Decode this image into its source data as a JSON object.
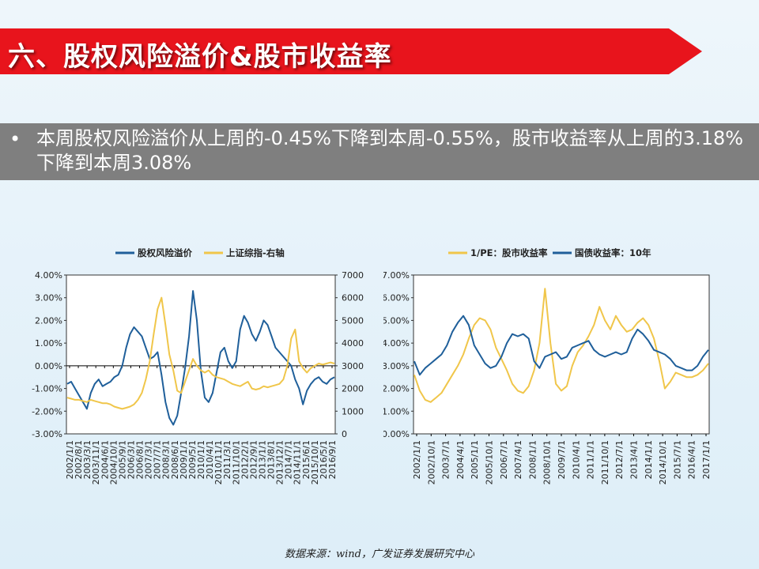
{
  "header": {
    "title": "六、股权风险溢价&股市收益率"
  },
  "bullet": {
    "text": "本周股权风险溢价从上周的-0.45%下降到本周-0.55%，股市收益率从上周的3.18%下降到本周3.08%"
  },
  "source": "数据来源：wind，广发证券发展研究中心",
  "colors": {
    "blue": "#1f5f9a",
    "gold": "#f0c64a",
    "banner": "#e8141c"
  },
  "chart_data": [
    {
      "type": "line",
      "legend": [
        "股权风险溢价",
        "上证综指-右轴"
      ],
      "x_ticks": [
        "2002/1/1",
        "2002/8/1",
        "2003/3/1",
        "2003/11/1",
        "2004/6/1",
        "2004/10/1",
        "2005/9/1",
        "2006/3/1",
        "2006/8/1",
        "2007/3/1",
        "2007/7/1",
        "2008/3/1",
        "2008/6/1",
        "2009/1/1",
        "2009/5/1",
        "2010/1/1",
        "2010/4/1",
        "2010/11/1",
        "2011/3/1",
        "2011/10/1",
        "2012/2/1",
        "2012/9/1",
        "2013/1/1",
        "2013/8/1",
        "2013/12/1",
        "2014/7/1",
        "2014/11/1",
        "2015/6/1",
        "2015/10/1",
        "2016/5/1",
        "2016/9/1"
      ],
      "y_left": {
        "min": -3,
        "max": 4,
        "ticks": [
          "-3.00%",
          "-2.00%",
          "-1.00%",
          "0.00%",
          "1.00%",
          "2.00%",
          "3.00%",
          "4.00%"
        ]
      },
      "y_right": {
        "min": 0,
        "max": 7000,
        "ticks": [
          "0",
          "1000",
          "2000",
          "3000",
          "4000",
          "5000",
          "6000",
          "7000"
        ]
      },
      "series": [
        {
          "name": "股权风险溢价",
          "axis": "left",
          "values": [
            -0.8,
            -0.7,
            -1.0,
            -1.3,
            -1.6,
            -1.9,
            -1.2,
            -0.8,
            -0.6,
            -0.9,
            -0.8,
            -0.7,
            -0.5,
            -0.4,
            0.0,
            0.8,
            1.4,
            1.7,
            1.5,
            1.3,
            0.8,
            0.3,
            0.4,
            0.6,
            -0.4,
            -1.6,
            -2.3,
            -2.6,
            -2.2,
            -1.2,
            -0.1,
            1.3,
            3.3,
            2.0,
            -0.2,
            -1.4,
            -1.6,
            -1.2,
            -0.3,
            0.6,
            0.8,
            0.2,
            -0.1,
            0.2,
            1.6,
            2.2,
            1.9,
            1.4,
            1.1,
            1.5,
            2.0,
            1.8,
            1.3,
            0.8,
            0.6,
            0.4,
            0.2,
            0.0,
            -0.6,
            -1.0,
            -1.7,
            -1.1,
            -0.8,
            -0.6,
            -0.5,
            -0.7,
            -0.8,
            -0.6,
            -0.5
          ]
        },
        {
          "name": "上证综指-右轴",
          "axis": "right",
          "values": [
            1600,
            1550,
            1500,
            1500,
            1450,
            1400,
            1500,
            1450,
            1400,
            1350,
            1350,
            1300,
            1200,
            1150,
            1100,
            1150,
            1200,
            1300,
            1500,
            1800,
            2400,
            3200,
            4400,
            5500,
            6000,
            4800,
            3500,
            2800,
            1900,
            1800,
            2300,
            2800,
            3300,
            3000,
            2800,
            2700,
            2800,
            2600,
            2500,
            2450,
            2400,
            2300,
            2200,
            2150,
            2100,
            2200,
            2300,
            2000,
            1950,
            2000,
            2100,
            2050,
            2100,
            2150,
            2200,
            2400,
            3000,
            4200,
            4600,
            3200,
            2900,
            2700,
            2900,
            3000,
            3100,
            3050,
            3100,
            3150,
            3100
          ]
        }
      ]
    },
    {
      "type": "line",
      "legend": [
        "1/PE：股市收益率",
        "国债收益率：10年"
      ],
      "x_ticks": [
        "2002/1/1",
        "2002/10/1",
        "2003/7/1",
        "2004/4/1",
        "2005/1/1",
        "2005/10/1",
        "2006/7/1",
        "2007/4/1",
        "2008/1/1",
        "2008/10/1",
        "2009/7/1",
        "2010/4/1",
        "2011/1/1",
        "2011/10/1",
        "2012/7/1",
        "2013/4/1",
        "2014/1/1",
        "2014/10/1",
        "2015/7/1",
        "2016/4/1",
        "2017/1/1"
      ],
      "y_left": {
        "min": 0,
        "max": 7,
        "ticks": [
          "0.00%",
          "1.00%",
          "2.00%",
          "3.00%",
          "4.00%",
          "5.00%",
          "6.00%",
          "7.00%"
        ]
      },
      "series": [
        {
          "name": "1/PE：股市收益率",
          "values": [
            2.6,
            1.9,
            1.5,
            1.4,
            1.6,
            1.8,
            2.2,
            2.6,
            3.0,
            3.5,
            4.2,
            4.8,
            5.1,
            5.0,
            4.6,
            3.8,
            3.3,
            2.8,
            2.2,
            1.9,
            1.8,
            2.1,
            2.8,
            4.0,
            6.4,
            4.0,
            2.2,
            1.9,
            2.1,
            3.0,
            3.6,
            3.9,
            4.3,
            4.8,
            5.6,
            5.0,
            4.6,
            5.2,
            4.8,
            4.5,
            4.6,
            4.9,
            5.1,
            4.8,
            4.2,
            3.2,
            2.0,
            2.3,
            2.7,
            2.6,
            2.5,
            2.5,
            2.6,
            2.8,
            3.1
          ]
        },
        {
          "name": "国债收益率：10年",
          "values": [
            3.2,
            2.6,
            2.9,
            3.1,
            3.3,
            3.5,
            3.9,
            4.5,
            4.9,
            5.2,
            4.8,
            3.9,
            3.5,
            3.1,
            2.9,
            3.0,
            3.4,
            4.0,
            4.4,
            4.3,
            4.4,
            4.2,
            3.2,
            2.9,
            3.4,
            3.5,
            3.6,
            3.3,
            3.4,
            3.8,
            3.9,
            4.0,
            4.1,
            3.7,
            3.5,
            3.4,
            3.5,
            3.6,
            3.5,
            3.6,
            4.2,
            4.6,
            4.4,
            4.1,
            3.7,
            3.6,
            3.5,
            3.3,
            3.0,
            2.9,
            2.8,
            2.8,
            3.0,
            3.4,
            3.7
          ]
        }
      ]
    }
  ]
}
